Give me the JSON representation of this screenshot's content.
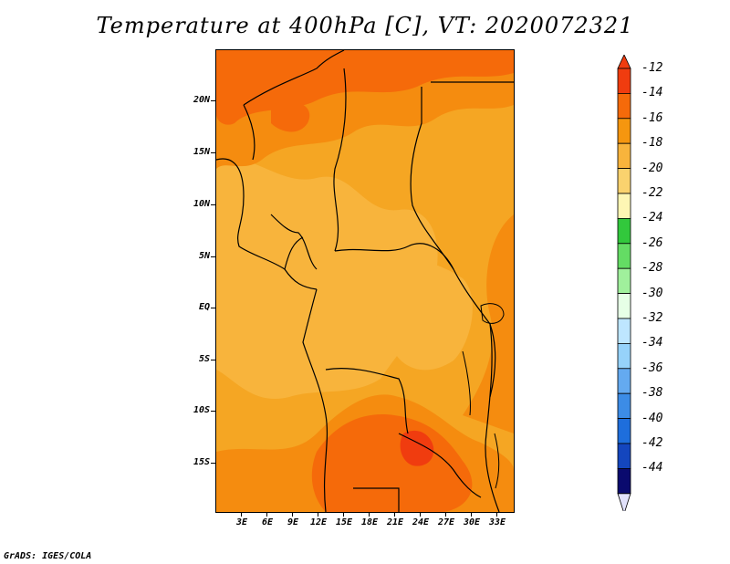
{
  "title": "Temperature at 400hPa [C], VT: 2020072321",
  "footer": "GrADS: IGES/COLA",
  "lat_labels": [
    "20N",
    "15N",
    "10N",
    "5N",
    "EQ",
    "5S",
    "10S",
    "15S"
  ],
  "lon_labels": [
    "3E",
    "6E",
    "9E",
    "12E",
    "15E",
    "18E",
    "21E",
    "24E",
    "27E",
    "30E",
    "33E"
  ],
  "colorbar": {
    "labels": [
      "-12",
      "-14",
      "-16",
      "-18",
      "-20",
      "-22",
      "-24",
      "-26",
      "-28",
      "-30",
      "-32",
      "-34",
      "-36",
      "-38",
      "-40",
      "-42",
      "-44"
    ],
    "colors": [
      "#f03c0f",
      "#f56a0a",
      "#f5960f",
      "#f8b43c",
      "#fad26e",
      "#fef6b4",
      "#32c83c",
      "#64dc64",
      "#a0f09c",
      "#e6ffe6",
      "#bee6ff",
      "#96d2fa",
      "#64aaf0",
      "#3c8ce6",
      "#1e6edc",
      "#1446be",
      "#0a0a6e"
    ],
    "over_color": "#f03c0f",
    "under_color": "#e1e1fa"
  },
  "map_colors": {
    "base": "#f5a623",
    "warm": "#f58c0f",
    "warmer": "#f56a0a",
    "hot": "#f03c0f",
    "cool": "#f8b43c"
  }
}
